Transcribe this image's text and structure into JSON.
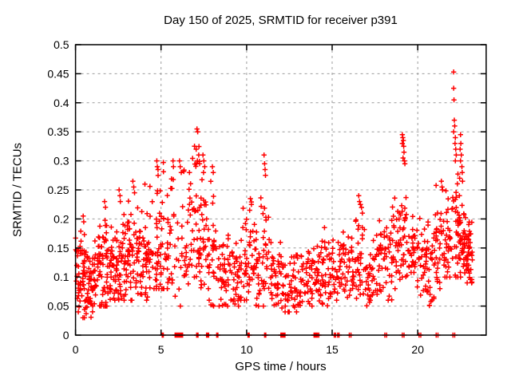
{
  "title": "Day 150 of 2025, SRMTID for receiver p391",
  "colors": {
    "marker": "#ff0000",
    "grid": "#9c9c9c",
    "axis": "#000000",
    "background": "#ffffff"
  },
  "chart_data": {
    "type": "scatter",
    "marker": "plus",
    "series_color": "#ff0000",
    "title": "Day 150 of 2025, SRMTID for receiver p391",
    "xlabel": "GPS time / hours",
    "ylabel": "SRMTID / TECUs",
    "xlim": [
      0,
      24
    ],
    "ylim": [
      0,
      0.5
    ],
    "xticks": [
      0,
      5,
      10,
      15,
      20
    ],
    "xtick_labels": [
      "0",
      "5",
      "10",
      "15",
      "20"
    ],
    "yticks": [
      0,
      0.05,
      0.1,
      0.15,
      0.2,
      0.25,
      0.3,
      0.35,
      0.4,
      0.45,
      0.5
    ],
    "ytick_labels": [
      "0",
      "0.05",
      "0.1",
      "0.15",
      "0.2",
      "0.25",
      "0.3",
      "0.35",
      "0.4",
      "0.45",
      "0.5"
    ],
    "grid": "dashed",
    "legend": "none",
    "band_fields": [
      "start_hour",
      "end_hour",
      "n_points",
      "min",
      "max",
      "center"
    ],
    "bands": [
      [
        0.0,
        0.3,
        28,
        0.04,
        0.17,
        0.1
      ],
      [
        0.3,
        0.6,
        28,
        0.03,
        0.2,
        0.09
      ],
      [
        0.6,
        1.0,
        34,
        0.03,
        0.15,
        0.08
      ],
      [
        1.0,
        1.4,
        32,
        0.05,
        0.18,
        0.1
      ],
      [
        1.4,
        1.8,
        34,
        0.05,
        0.22,
        0.11
      ],
      [
        1.8,
        2.2,
        34,
        0.05,
        0.19,
        0.11
      ],
      [
        2.2,
        2.6,
        32,
        0.06,
        0.22,
        0.11
      ],
      [
        2.6,
        3.0,
        32,
        0.06,
        0.21,
        0.12
      ],
      [
        3.0,
        3.5,
        36,
        0.06,
        0.24,
        0.12
      ],
      [
        3.5,
        4.0,
        36,
        0.07,
        0.22,
        0.13
      ],
      [
        4.0,
        4.5,
        34,
        0.06,
        0.26,
        0.13
      ],
      [
        4.5,
        5.0,
        34,
        0.08,
        0.29,
        0.15
      ],
      [
        5.0,
        5.3,
        16,
        0.08,
        0.3,
        0.16
      ],
      [
        5.3,
        5.8,
        28,
        0.08,
        0.28,
        0.14
      ],
      [
        5.8,
        6.3,
        14,
        0.05,
        0.27,
        0.13
      ],
      [
        6.3,
        6.8,
        28,
        0.08,
        0.29,
        0.15
      ],
      [
        6.8,
        7.3,
        32,
        0.1,
        0.34,
        0.2
      ],
      [
        7.3,
        7.8,
        32,
        0.08,
        0.3,
        0.17
      ],
      [
        7.8,
        8.3,
        28,
        0.05,
        0.27,
        0.13
      ],
      [
        8.3,
        9.0,
        38,
        0.05,
        0.18,
        0.1
      ],
      [
        9.0,
        9.6,
        32,
        0.05,
        0.19,
        0.1
      ],
      [
        9.6,
        10.1,
        28,
        0.06,
        0.22,
        0.11
      ],
      [
        10.1,
        10.5,
        24,
        0.07,
        0.23,
        0.13
      ],
      [
        10.5,
        11.0,
        28,
        0.05,
        0.24,
        0.1
      ],
      [
        11.0,
        11.35,
        18,
        0.08,
        0.27,
        0.15
      ],
      [
        11.35,
        12.0,
        34,
        0.04,
        0.16,
        0.09
      ],
      [
        12.0,
        12.6,
        30,
        0.04,
        0.15,
        0.08
      ],
      [
        12.6,
        13.4,
        42,
        0.04,
        0.15,
        0.09
      ],
      [
        13.4,
        14.0,
        32,
        0.05,
        0.16,
        0.1
      ],
      [
        14.0,
        14.4,
        22,
        0.05,
        0.17,
        0.1
      ],
      [
        14.4,
        15.0,
        32,
        0.05,
        0.17,
        0.1
      ],
      [
        15.0,
        15.5,
        26,
        0.06,
        0.18,
        0.11
      ],
      [
        15.5,
        16.0,
        28,
        0.06,
        0.19,
        0.12
      ],
      [
        16.0,
        16.5,
        26,
        0.05,
        0.21,
        0.12
      ],
      [
        16.5,
        17.0,
        28,
        0.07,
        0.22,
        0.13
      ],
      [
        17.0,
        17.5,
        28,
        0.05,
        0.17,
        0.1
      ],
      [
        17.5,
        18.0,
        28,
        0.07,
        0.2,
        0.13
      ],
      [
        18.0,
        18.5,
        28,
        0.06,
        0.22,
        0.13
      ],
      [
        18.5,
        19.0,
        30,
        0.08,
        0.25,
        0.15
      ],
      [
        19.0,
        19.4,
        24,
        0.1,
        0.3,
        0.17
      ],
      [
        19.4,
        20.0,
        30,
        0.08,
        0.22,
        0.14
      ],
      [
        20.0,
        20.5,
        28,
        0.05,
        0.21,
        0.12
      ],
      [
        20.5,
        21.0,
        30,
        0.05,
        0.22,
        0.12
      ],
      [
        21.0,
        21.5,
        30,
        0.08,
        0.26,
        0.15
      ],
      [
        21.5,
        22.0,
        32,
        0.1,
        0.26,
        0.16
      ],
      [
        22.0,
        22.35,
        24,
        0.1,
        0.3,
        0.17
      ],
      [
        22.35,
        22.8,
        44,
        0.1,
        0.24,
        0.16
      ],
      [
        22.8,
        23.2,
        40,
        0.09,
        0.2,
        0.14
      ]
    ],
    "spike_points": [
      [
        0.45,
        0.205
      ],
      [
        0.48,
        0.195
      ],
      [
        1.7,
        0.23
      ],
      [
        1.75,
        0.22
      ],
      [
        2.55,
        0.25
      ],
      [
        2.6,
        0.24
      ],
      [
        2.62,
        0.23
      ],
      [
        3.35,
        0.265
      ],
      [
        3.4,
        0.255
      ],
      [
        3.45,
        0.245
      ],
      [
        4.75,
        0.3
      ],
      [
        4.78,
        0.29
      ],
      [
        4.82,
        0.285
      ],
      [
        5.7,
        0.3
      ],
      [
        5.72,
        0.29
      ],
      [
        6.08,
        0.3
      ],
      [
        6.12,
        0.29
      ],
      [
        6.18,
        0.28
      ],
      [
        7.1,
        0.355
      ],
      [
        7.14,
        0.35
      ],
      [
        7.05,
        0.32
      ],
      [
        7.2,
        0.31
      ],
      [
        7.12,
        0.3
      ],
      [
        7.25,
        0.295
      ],
      [
        7.45,
        0.31
      ],
      [
        7.5,
        0.3
      ],
      [
        7.55,
        0.29
      ],
      [
        7.48,
        0.28
      ],
      [
        8.0,
        0.29
      ],
      [
        8.05,
        0.28
      ],
      [
        10.22,
        0.235
      ],
      [
        10.28,
        0.225
      ],
      [
        10.18,
        0.215
      ],
      [
        11.02,
        0.31
      ],
      [
        11.05,
        0.295
      ],
      [
        11.08,
        0.285
      ],
      [
        11.1,
        0.275
      ],
      [
        14.55,
        0.185
      ],
      [
        16.55,
        0.24
      ],
      [
        16.6,
        0.23
      ],
      [
        16.65,
        0.225
      ],
      [
        19.1,
        0.345
      ],
      [
        19.13,
        0.34
      ],
      [
        19.16,
        0.335
      ],
      [
        19.1,
        0.33
      ],
      [
        19.18,
        0.325
      ],
      [
        19.2,
        0.315
      ],
      [
        19.14,
        0.305
      ],
      [
        19.22,
        0.3
      ],
      [
        19.25,
        0.295
      ],
      [
        21.38,
        0.265
      ],
      [
        21.42,
        0.255
      ],
      [
        21.45,
        0.25
      ],
      [
        22.1,
        0.453
      ],
      [
        22.1,
        0.425
      ],
      [
        22.12,
        0.405
      ],
      [
        22.14,
        0.37
      ],
      [
        22.16,
        0.36
      ],
      [
        22.1,
        0.35
      ],
      [
        22.2,
        0.34
      ],
      [
        22.18,
        0.33
      ],
      [
        22.22,
        0.32
      ],
      [
        22.25,
        0.31
      ],
      [
        22.2,
        0.3
      ],
      [
        22.5,
        0.345
      ],
      [
        22.52,
        0.33
      ],
      [
        22.48,
        0.32
      ],
      [
        22.55,
        0.31
      ],
      [
        22.5,
        0.3
      ],
      [
        22.58,
        0.29
      ],
      [
        22.6,
        0.28
      ],
      [
        22.45,
        0.27
      ],
      [
        22.62,
        0.265
      ]
    ],
    "zero_value_hours": [
      5.07,
      5.1,
      5.13,
      5.82,
      5.86,
      5.9,
      5.94,
      5.98,
      6.02,
      6.06,
      6.1,
      6.14,
      6.18,
      6.22,
      6.26,
      7.08,
      7.12,
      7.16,
      7.66,
      7.7,
      7.74,
      7.78,
      8.25,
      8.32,
      10.08,
      10.15,
      11.05,
      11.12,
      12.0,
      12.04,
      12.08,
      12.12,
      12.16,
      12.2,
      12.24,
      13.94,
      13.99,
      14.04,
      14.09,
      14.14,
      14.22,
      15.12,
      15.2,
      15.32,
      15.4,
      16.0,
      16.1,
      18.08,
      18.18,
      19.1,
      19.2,
      20.08,
      20.18,
      21.08,
      21.18,
      22.06,
      22.16
    ]
  }
}
